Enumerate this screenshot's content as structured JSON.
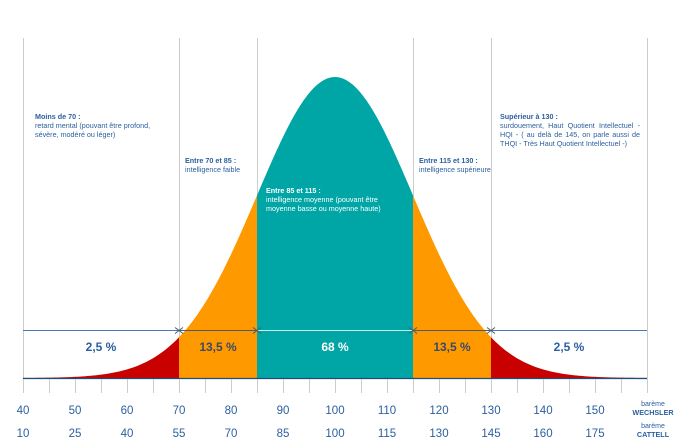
{
  "chart_data": {
    "type": "area",
    "title": "",
    "description": "Normal distribution of IQ scores with Wechsler and Cattell scales",
    "distribution": {
      "mean": 100,
      "sd": 15,
      "scale": "wechsler"
    },
    "x_range_wechsler": [
      40,
      160
    ],
    "scales": [
      {
        "name_prefix": "barème",
        "name": "WECHSLER",
        "ticks": [
          40,
          50,
          60,
          70,
          80,
          90,
          100,
          110,
          120,
          130,
          140,
          150
        ]
      },
      {
        "name_prefix": "barème",
        "name": "CATTELL",
        "ticks": [
          10,
          25,
          40,
          55,
          70,
          85,
          100,
          115,
          130,
          145,
          160,
          175
        ]
      }
    ],
    "boundaries": [
      40,
      70,
      85,
      115,
      130,
      160
    ],
    "regions": [
      {
        "from": 40,
        "to": 70,
        "percent_label": "2,5 %",
        "color": "#c80000",
        "title": "Moins de 70 :",
        "text": "retard mental (pouvant être profond, sévère, modéré ou léger)"
      },
      {
        "from": 70,
        "to": 85,
        "percent_label": "13,5 %",
        "color": "#ff9900",
        "title": "Entre 70 et 85 :",
        "text": "intelligence faible"
      },
      {
        "from": 85,
        "to": 115,
        "percent_label": "68 %",
        "color": "#00a5a5",
        "title": "Entre 85 et 115 :",
        "text": "intelligence moyenne (pouvant être moyenne basse ou moyenne haute)"
      },
      {
        "from": 115,
        "to": 130,
        "percent_label": "13,5 %",
        "color": "#ff9900",
        "title": "Entre 115 et 130 :",
        "text": "intelligence supérieure"
      },
      {
        "from": 130,
        "to": 160,
        "percent_label": "2,5 %",
        "color": "#c80000",
        "title": "Supérieur à 130 :",
        "text": "surdouement, Haut Quotient Intellectuel - HQI - ( au delà de 145, on parle aussi de THQI - Très Haut Quotient Intellectuel -)"
      }
    ],
    "grid": true,
    "colors": {
      "text": "#2b5f9e",
      "grid": "#cccccc",
      "axis": "#1f4e79",
      "separator": "#4a7ab8",
      "percent_dark": "#3a4a66"
    }
  }
}
